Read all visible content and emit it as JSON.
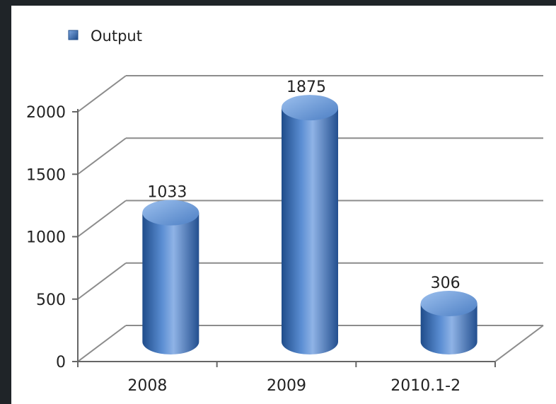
{
  "chart_data": {
    "type": "bar",
    "style": "3d-cylinder",
    "categories": [
      "2008",
      "2009",
      "2010.1-2"
    ],
    "series": [
      {
        "name": "Output",
        "values": [
          1033,
          1875,
          306
        ]
      }
    ],
    "y_ticks": [
      "0",
      "500",
      "1000",
      "1500",
      "2000"
    ],
    "ylim": [
      0,
      2000
    ],
    "grid": true,
    "legend": "top-left",
    "colors": {
      "bar": "#3f72b8",
      "bar_dark": "#1f4c8a",
      "bar_light": "#8fb3e6",
      "grid": "#8c8c8c"
    }
  }
}
